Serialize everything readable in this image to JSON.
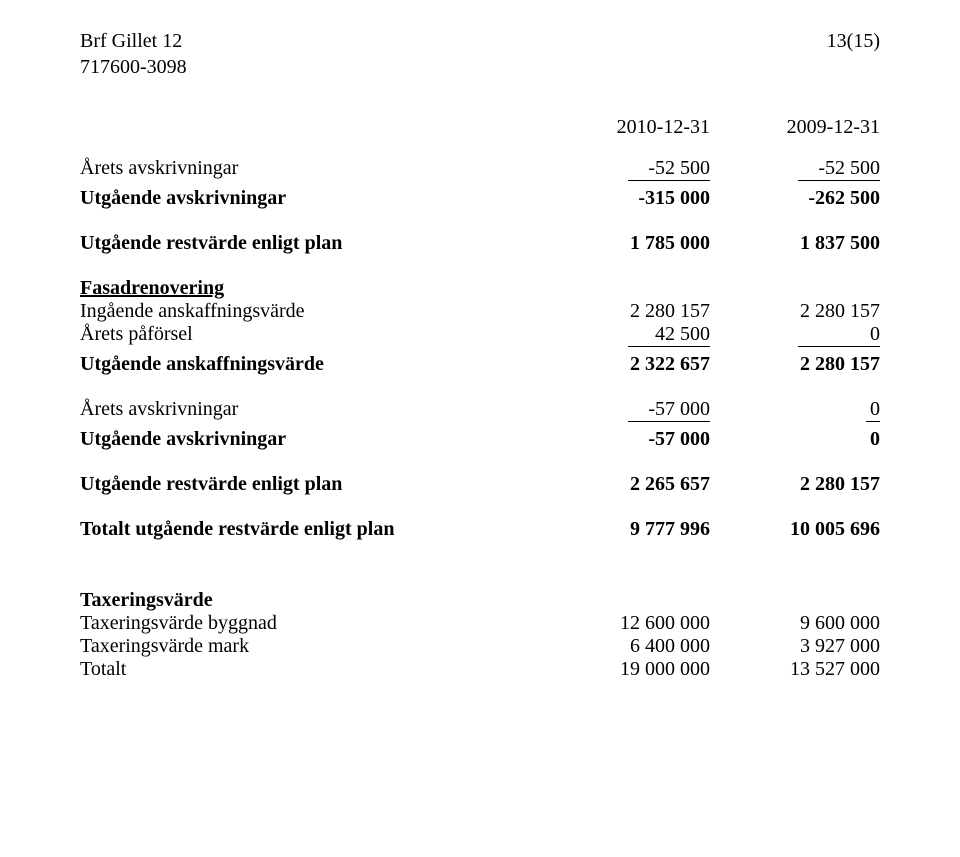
{
  "header": {
    "company": "Brf Gillet 12",
    "orgnr": "717600-3098",
    "page": "13(15)"
  },
  "dates": {
    "col1": "2010-12-31",
    "col2": "2009-12-31"
  },
  "block1": {
    "arets_label": "Årets avskrivningar",
    "arets_v1": "-52 500",
    "arets_v2": "-52 500",
    "utg_avskr_label": "Utgående avskrivningar",
    "utg_avskr_v1": "-315 000",
    "utg_avskr_v2": "-262 500",
    "utg_rest_label": "Utgående restvärde enligt plan",
    "utg_rest_v1": "1 785 000",
    "utg_rest_v2": "1 837 500"
  },
  "fasad": {
    "title": "Fasadrenovering",
    "ing_label": "Ingående anskaffningsvärde",
    "ing_v1": "2 280 157",
    "ing_v2": "2 280 157",
    "paf_label": "Årets påförsel",
    "paf_v1": "42 500",
    "paf_v2": "0",
    "utg_ansk_label": "Utgående anskaffningsvärde",
    "utg_ansk_v1": "2 322 657",
    "utg_ansk_v2": "2 280 157",
    "arets_label": "Årets avskrivningar",
    "arets_v1": "-57 000",
    "arets_v2": "0",
    "utg_avskr_label": "Utgående avskrivningar",
    "utg_avskr_v1": "-57 000",
    "utg_avskr_v2": "0",
    "utg_rest_label": "Utgående restvärde enligt plan",
    "utg_rest_v1": "2 265 657",
    "utg_rest_v2": "2 280 157",
    "tot_label": "Totalt utgående restvärde enligt plan",
    "tot_v1": "9 777 996",
    "tot_v2": "10 005 696"
  },
  "tax": {
    "title": "Taxeringsvärde",
    "bygg_label": "Taxeringsvärde byggnad",
    "bygg_v1": "12 600 000",
    "bygg_v2": "9 600 000",
    "mark_label": "Taxeringsvärde mark",
    "mark_v1": "6 400 000",
    "mark_v2": "3 927 000",
    "tot_label": "Totalt",
    "tot_v1": "19 000 000",
    "tot_v2": "13 527 000"
  }
}
